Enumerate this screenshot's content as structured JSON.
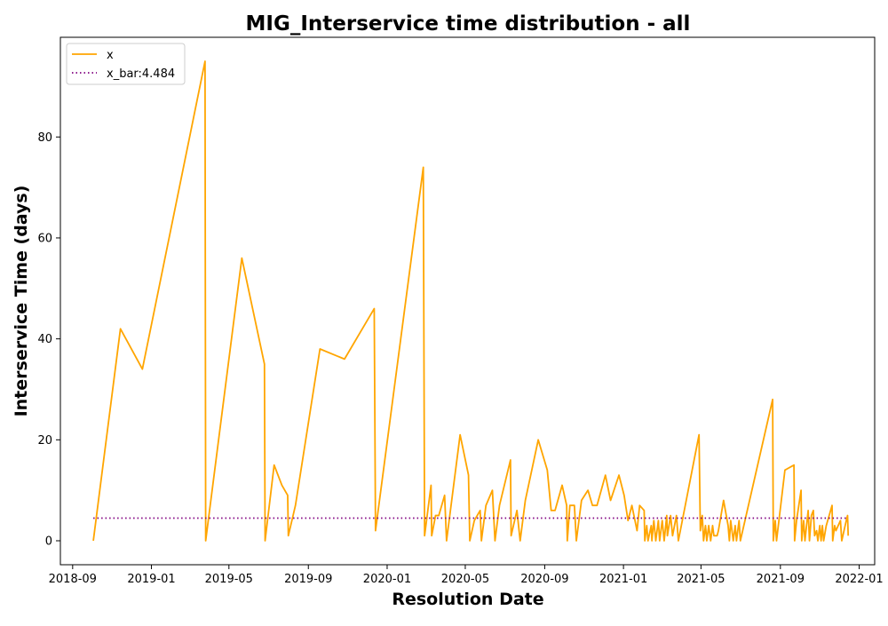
{
  "chart_data": {
    "type": "line",
    "title": "MIG_Interservice time distribution - all",
    "xlabel": "Resolution Date",
    "ylabel": "Interservice Time (days)",
    "x_axis": "date",
    "xlim": [
      "2018-08-13",
      "2022-01-25"
    ],
    "ylim": [
      -4.75,
      99.75
    ],
    "x_ticks": [
      "2018-09",
      "2019-01",
      "2019-05",
      "2019-09",
      "2020-01",
      "2020-05",
      "2020-09",
      "2021-01",
      "2021-05",
      "2021-09",
      "2022-01"
    ],
    "y_ticks": [
      0,
      20,
      40,
      60,
      80
    ],
    "grid": false,
    "legend_position": "top-left",
    "series": [
      {
        "name": "x",
        "color": "#ffa500",
        "style": "solid",
        "points": [
          [
            "2018-10-03",
            0
          ],
          [
            "2018-11-14",
            42
          ],
          [
            "2018-12-18",
            34
          ],
          [
            "2019-03-25",
            95
          ],
          [
            "2019-03-26",
            0
          ],
          [
            "2019-05-21",
            56
          ],
          [
            "2019-06-25",
            35
          ],
          [
            "2019-06-26",
            0
          ],
          [
            "2019-07-10",
            15
          ],
          [
            "2019-07-22",
            11
          ],
          [
            "2019-07-31",
            9
          ],
          [
            "2019-08-01",
            1
          ],
          [
            "2019-08-12",
            7
          ],
          [
            "2019-09-19",
            38
          ],
          [
            "2019-10-27",
            36
          ],
          [
            "2019-12-12",
            46
          ],
          [
            "2019-12-14",
            2
          ],
          [
            "2020-02-26",
            74
          ],
          [
            "2020-02-28",
            1
          ],
          [
            "2020-03-09",
            11
          ],
          [
            "2020-03-10",
            1
          ],
          [
            "2020-03-16",
            5
          ],
          [
            "2020-03-21",
            5
          ],
          [
            "2020-03-30",
            9
          ],
          [
            "2020-04-02",
            0
          ],
          [
            "2020-04-23",
            21
          ],
          [
            "2020-05-06",
            13
          ],
          [
            "2020-05-08",
            0
          ],
          [
            "2020-05-15",
            4
          ],
          [
            "2020-05-24",
            6
          ],
          [
            "2020-05-26",
            0
          ],
          [
            "2020-06-02",
            7
          ],
          [
            "2020-06-12",
            10
          ],
          [
            "2020-06-16",
            0
          ],
          [
            "2020-06-23",
            7
          ],
          [
            "2020-07-10",
            16
          ],
          [
            "2020-07-11",
            1
          ],
          [
            "2020-07-20",
            6
          ],
          [
            "2020-07-25",
            0
          ],
          [
            "2020-08-02",
            8
          ],
          [
            "2020-08-22",
            20
          ],
          [
            "2020-09-05",
            14
          ],
          [
            "2020-09-11",
            6
          ],
          [
            "2020-09-17",
            6
          ],
          [
            "2020-09-28",
            11
          ],
          [
            "2020-10-05",
            7
          ],
          [
            "2020-10-06",
            0
          ],
          [
            "2020-10-10",
            7
          ],
          [
            "2020-10-17",
            7
          ],
          [
            "2020-10-20",
            0
          ],
          [
            "2020-10-28",
            8
          ],
          [
            "2020-11-07",
            10
          ],
          [
            "2020-11-14",
            7
          ],
          [
            "2020-11-21",
            7
          ],
          [
            "2020-12-04",
            13
          ],
          [
            "2020-12-12",
            8
          ],
          [
            "2020-12-25",
            13
          ],
          [
            "2021-01-02",
            9
          ],
          [
            "2021-01-08",
            4
          ],
          [
            "2021-01-14",
            7
          ],
          [
            "2021-01-22",
            2
          ],
          [
            "2021-01-26",
            7
          ],
          [
            "2021-02-02",
            6
          ],
          [
            "2021-02-03",
            0
          ],
          [
            "2021-02-06",
            3
          ],
          [
            "2021-02-08",
            0
          ],
          [
            "2021-02-13",
            3
          ],
          [
            "2021-02-14",
            0
          ],
          [
            "2021-02-17",
            4
          ],
          [
            "2021-02-20",
            0
          ],
          [
            "2021-02-24",
            4
          ],
          [
            "2021-02-26",
            0
          ],
          [
            "2021-03-02",
            4
          ],
          [
            "2021-03-05",
            0
          ],
          [
            "2021-03-09",
            5
          ],
          [
            "2021-03-10",
            1
          ],
          [
            "2021-03-15",
            5
          ],
          [
            "2021-03-18",
            1
          ],
          [
            "2021-03-24",
            5
          ],
          [
            "2021-03-27",
            0
          ],
          [
            "2021-04-28",
            21
          ],
          [
            "2021-04-30",
            2
          ],
          [
            "2021-05-03",
            5
          ],
          [
            "2021-05-05",
            0
          ],
          [
            "2021-05-08",
            3
          ],
          [
            "2021-05-10",
            0
          ],
          [
            "2021-05-13",
            3
          ],
          [
            "2021-05-16",
            0
          ],
          [
            "2021-05-19",
            3
          ],
          [
            "2021-05-21",
            1
          ],
          [
            "2021-05-26",
            1
          ],
          [
            "2021-05-28",
            2
          ],
          [
            "2021-06-05",
            8
          ],
          [
            "2021-06-12",
            3
          ],
          [
            "2021-06-14",
            0
          ],
          [
            "2021-06-16",
            4
          ],
          [
            "2021-06-20",
            0
          ],
          [
            "2021-06-23",
            3
          ],
          [
            "2021-06-25",
            0
          ],
          [
            "2021-06-29",
            4
          ],
          [
            "2021-07-01",
            0
          ],
          [
            "2021-08-20",
            28
          ],
          [
            "2021-08-21",
            0
          ],
          [
            "2021-08-24",
            4
          ],
          [
            "2021-08-26",
            0
          ],
          [
            "2021-09-08",
            14
          ],
          [
            "2021-09-22",
            15
          ],
          [
            "2021-09-23",
            0
          ],
          [
            "2021-09-26",
            4
          ],
          [
            "2021-10-03",
            10
          ],
          [
            "2021-10-04",
            0
          ],
          [
            "2021-10-07",
            4
          ],
          [
            "2021-10-09",
            0
          ],
          [
            "2021-10-14",
            6
          ],
          [
            "2021-10-16",
            0
          ],
          [
            "2021-10-19",
            5
          ],
          [
            "2021-10-22",
            6
          ],
          [
            "2021-10-24",
            1
          ],
          [
            "2021-10-27",
            2
          ],
          [
            "2021-10-29",
            0
          ],
          [
            "2021-11-01",
            3
          ],
          [
            "2021-11-03",
            0
          ],
          [
            "2021-11-05",
            3
          ],
          [
            "2021-11-07",
            0
          ],
          [
            "2021-11-11",
            3
          ],
          [
            "2021-11-20",
            7
          ],
          [
            "2021-11-21",
            0
          ],
          [
            "2021-11-24",
            3
          ],
          [
            "2021-11-26",
            2
          ],
          [
            "2021-12-03",
            4
          ],
          [
            "2021-12-05",
            0
          ],
          [
            "2021-12-12",
            4
          ],
          [
            "2021-12-14",
            5
          ],
          [
            "2021-12-15",
            1
          ]
        ]
      },
      {
        "name": "x_bar:4.484",
        "color": "#800080",
        "style": "dotted",
        "points": [
          [
            "2018-10-03",
            4.484
          ],
          [
            "2021-12-15",
            4.484
          ]
        ]
      }
    ]
  }
}
